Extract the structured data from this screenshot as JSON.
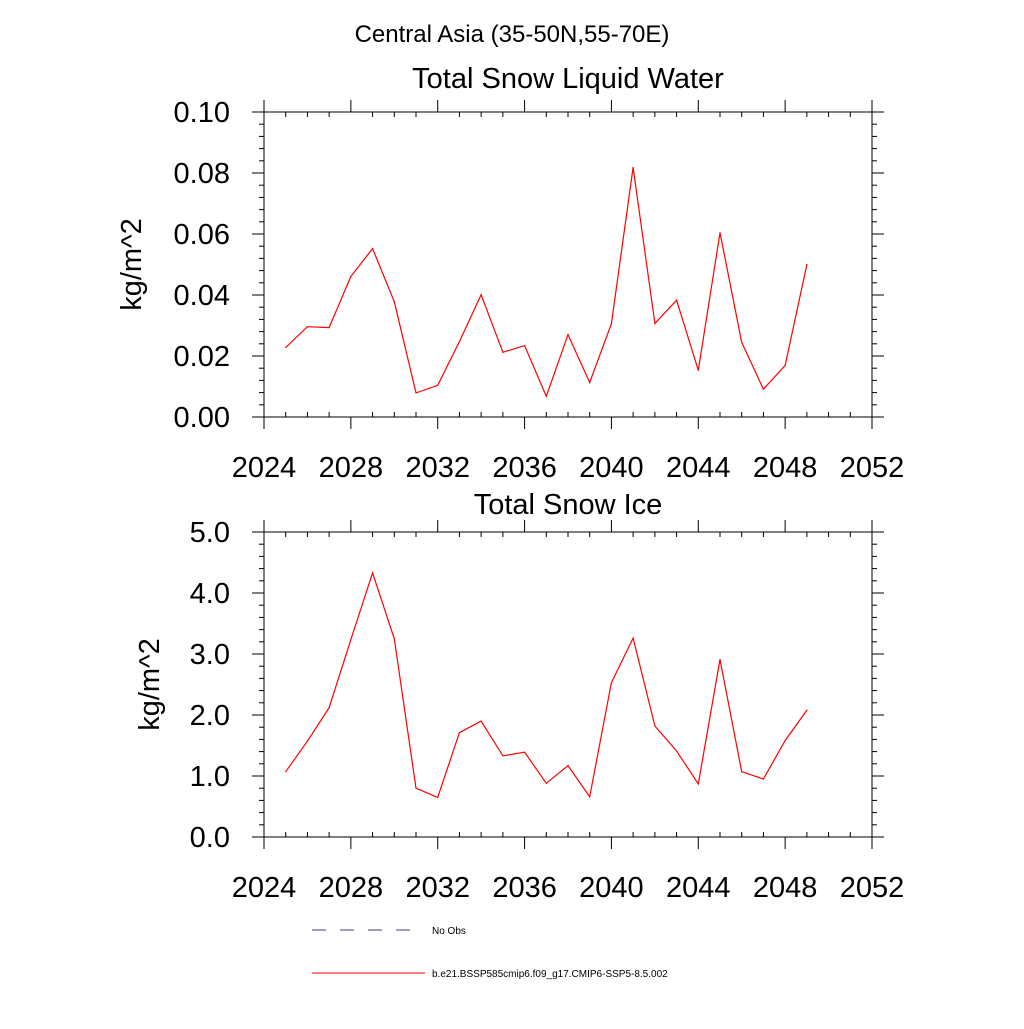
{
  "figure": {
    "suptitle": "Central Asia (35-50N,55-70E)"
  },
  "chart_data": [
    {
      "type": "line",
      "title": "Total Snow Liquid Water",
      "xlabel": "",
      "ylabel": "kg/m^2",
      "xlim": [
        2024,
        2052
      ],
      "ylim": [
        0,
        0.1
      ],
      "xticks": [
        2024,
        2028,
        2032,
        2036,
        2040,
        2044,
        2048,
        2052
      ],
      "xtick_labels": [
        "2024",
        "2028",
        "2032",
        "2036",
        "2040",
        "2044",
        "2048",
        "2052"
      ],
      "yticks": [
        0,
        0.02,
        0.04,
        0.06,
        0.08,
        0.1
      ],
      "ytick_labels": [
        "0.00",
        "0.02",
        "0.04",
        "0.06",
        "0.08",
        "0.10"
      ],
      "grid": false,
      "series": [
        {
          "name": "b.e21.BSSP585cmip6.f09_g17.CMIP6-SSP5-8.5.002",
          "color": "#ff0000",
          "x": [
            2025,
            2026,
            2027,
            2028,
            2029,
            2030,
            2031,
            2032,
            2033,
            2034,
            2035,
            2036,
            2037,
            2038,
            2039,
            2040,
            2041,
            2042,
            2043,
            2044,
            2045,
            2046,
            2047,
            2048,
            2049
          ],
          "y": [
            0.0228,
            0.0296,
            0.0293,
            0.0461,
            0.0552,
            0.0378,
            0.0079,
            0.0104,
            0.0247,
            0.0401,
            0.0212,
            0.0234,
            0.0068,
            0.027,
            0.0113,
            0.0306,
            0.0818,
            0.0307,
            0.0383,
            0.0153,
            0.0604,
            0.0245,
            0.0091,
            0.0169,
            0.05
          ]
        }
      ]
    },
    {
      "type": "line",
      "title": "Total Snow Ice",
      "xlabel": "",
      "ylabel": "kg/m^2",
      "xlim": [
        2024,
        2052
      ],
      "ylim": [
        0,
        5
      ],
      "xticks": [
        2024,
        2028,
        2032,
        2036,
        2040,
        2044,
        2048,
        2052
      ],
      "xtick_labels": [
        "2024",
        "2028",
        "2032",
        "2036",
        "2040",
        "2044",
        "2048",
        "2052"
      ],
      "yticks": [
        0,
        1,
        2,
        3,
        4,
        5
      ],
      "ytick_labels": [
        "0.0",
        "1.0",
        "2.0",
        "3.0",
        "4.0",
        "5.0"
      ],
      "grid": false,
      "series": [
        {
          "name": "b.e21.BSSP585cmip6.f09_g17.CMIP6-SSP5-8.5.002",
          "color": "#ff0000",
          "x": [
            2025,
            2026,
            2027,
            2028,
            2029,
            2030,
            2031,
            2032,
            2033,
            2034,
            2035,
            2036,
            2037,
            2038,
            2039,
            2040,
            2041,
            2042,
            2043,
            2044,
            2045,
            2046,
            2047,
            2048,
            2049
          ],
          "y": [
            1.07,
            1.57,
            2.12,
            3.24,
            4.33,
            3.25,
            0.8,
            0.65,
            1.71,
            1.9,
            1.33,
            1.39,
            0.88,
            1.17,
            0.66,
            2.53,
            3.26,
            1.82,
            1.41,
            0.87,
            2.91,
            1.07,
            0.95,
            1.58,
            2.08
          ]
        }
      ]
    }
  ],
  "legend": {
    "placement": "bottom",
    "items": [
      {
        "label": "No Obs",
        "style": "dashed",
        "color": "#3b3b8f"
      },
      {
        "label": "b.e21.BSSP585cmip6.f09_g17.CMIP6-SSP5-8.5.002",
        "style": "solid",
        "color": "#ff0000"
      }
    ]
  }
}
